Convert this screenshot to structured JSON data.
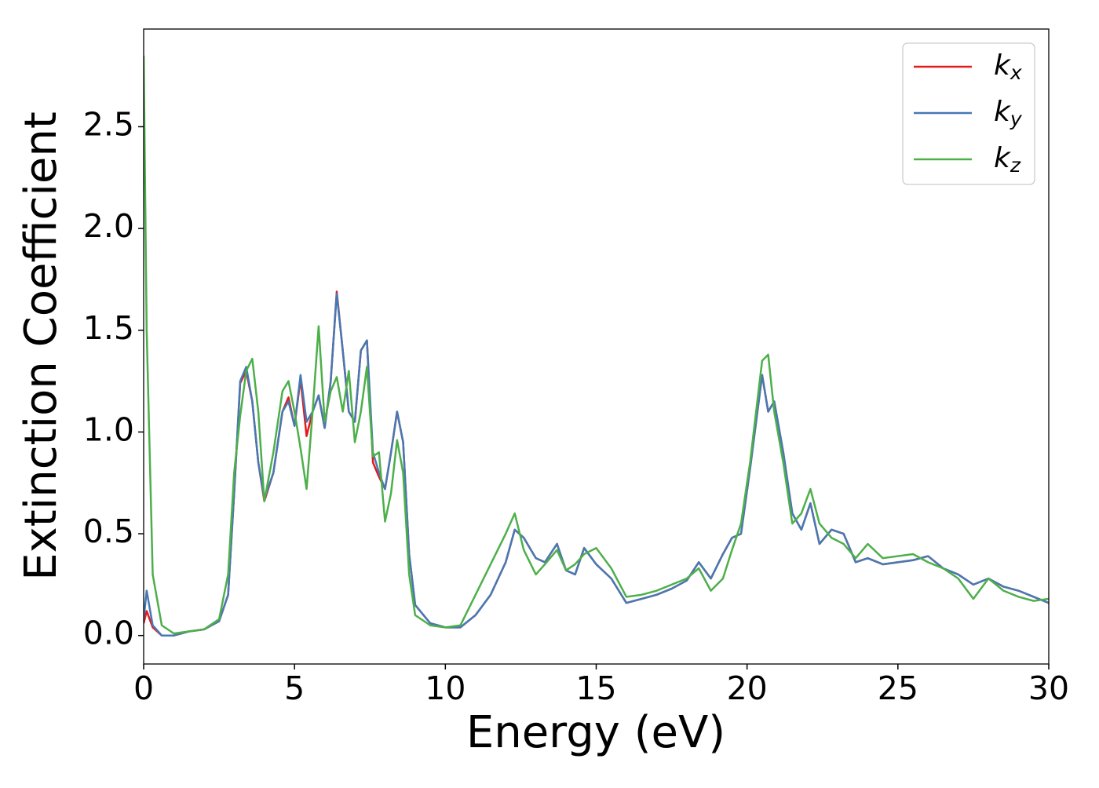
{
  "chart_data": {
    "type": "line",
    "xlabel": "Energy (eV)",
    "ylabel": "Extinction Coefficient",
    "x": [
      0,
      0.1,
      0.3,
      0.6,
      1,
      1.5,
      2,
      2.5,
      2.8,
      3,
      3.2,
      3.4,
      3.6,
      3.8,
      4,
      4.3,
      4.6,
      4.8,
      5,
      5.2,
      5.4,
      5.6,
      5.8,
      6,
      6.2,
      6.4,
      6.6,
      6.8,
      7,
      7.2,
      7.4,
      7.6,
      7.8,
      8,
      8.2,
      8.4,
      8.6,
      8.8,
      9,
      9.5,
      10,
      10.5,
      11,
      11.5,
      12,
      12.3,
      12.6,
      13,
      13.3,
      13.7,
      14,
      14.3,
      14.6,
      15,
      15.5,
      16,
      16.5,
      17,
      17.5,
      18,
      18.4,
      18.8,
      19.2,
      19.5,
      19.8,
      20.1,
      20.5,
      20.7,
      20.9,
      21.2,
      21.5,
      21.8,
      22.1,
      22.4,
      22.8,
      23.2,
      23.6,
      24,
      24.5,
      25,
      25.5,
      26,
      26.5,
      27,
      27.5,
      28,
      28.5,
      29,
      29.5,
      30
    ],
    "series": [
      {
        "name": "kx",
        "color": "#e41a1c",
        "values": [
          0.06,
          0.12,
          0.04,
          0.0,
          0.0,
          0.02,
          0.03,
          0.07,
          0.2,
          0.7,
          1.24,
          1.3,
          1.15,
          0.85,
          0.66,
          0.8,
          1.1,
          1.17,
          1.03,
          1.26,
          0.98,
          1.1,
          1.18,
          1.02,
          1.25,
          1.69,
          1.4,
          1.1,
          1.05,
          1.4,
          1.45,
          0.85,
          0.78,
          0.72,
          0.9,
          1.1,
          0.95,
          0.4,
          0.15,
          0.06,
          0.04,
          0.04,
          0.1,
          0.2,
          0.36,
          0.52,
          0.48,
          0.38,
          0.36,
          0.45,
          0.32,
          0.3,
          0.43,
          0.35,
          0.28,
          0.16,
          0.18,
          0.2,
          0.23,
          0.27,
          0.36,
          0.28,
          0.4,
          0.48,
          0.5,
          0.82,
          1.28,
          1.1,
          1.15,
          0.9,
          0.6,
          0.52,
          0.65,
          0.45,
          0.52,
          0.5,
          0.36,
          0.38,
          0.35,
          0.36,
          0.37,
          0.39,
          0.33,
          0.3,
          0.25,
          0.28,
          0.24,
          0.22,
          0.19,
          0.16
        ]
      },
      {
        "name": "ky",
        "color": "#4679b4",
        "values": [
          0.08,
          0.22,
          0.05,
          0.0,
          0.0,
          0.02,
          0.03,
          0.07,
          0.2,
          0.7,
          1.25,
          1.32,
          1.15,
          0.85,
          0.67,
          0.8,
          1.1,
          1.15,
          1.03,
          1.28,
          1.05,
          1.1,
          1.18,
          1.02,
          1.25,
          1.68,
          1.4,
          1.1,
          1.05,
          1.4,
          1.45,
          0.9,
          0.8,
          0.72,
          0.9,
          1.1,
          0.95,
          0.4,
          0.15,
          0.06,
          0.04,
          0.04,
          0.1,
          0.2,
          0.36,
          0.52,
          0.48,
          0.38,
          0.36,
          0.45,
          0.32,
          0.3,
          0.43,
          0.35,
          0.28,
          0.16,
          0.18,
          0.2,
          0.23,
          0.27,
          0.36,
          0.28,
          0.4,
          0.48,
          0.5,
          0.82,
          1.28,
          1.1,
          1.15,
          0.9,
          0.6,
          0.52,
          0.65,
          0.45,
          0.52,
          0.5,
          0.36,
          0.38,
          0.35,
          0.36,
          0.37,
          0.39,
          0.33,
          0.3,
          0.25,
          0.28,
          0.24,
          0.22,
          0.19,
          0.16
        ]
      },
      {
        "name": "kz",
        "color": "#4daf4a",
        "values": [
          2.85,
          1.5,
          0.3,
          0.05,
          0.01,
          0.02,
          0.03,
          0.08,
          0.3,
          0.8,
          1.08,
          1.3,
          1.36,
          1.1,
          0.66,
          0.9,
          1.2,
          1.25,
          1.1,
          0.92,
          0.72,
          1.1,
          1.52,
          1.05,
          1.2,
          1.27,
          1.1,
          1.3,
          0.95,
          1.1,
          1.32,
          0.88,
          0.9,
          0.56,
          0.7,
          0.96,
          0.8,
          0.3,
          0.1,
          0.05,
          0.04,
          0.05,
          0.2,
          0.35,
          0.5,
          0.6,
          0.42,
          0.3,
          0.35,
          0.42,
          0.32,
          0.35,
          0.4,
          0.43,
          0.33,
          0.19,
          0.2,
          0.22,
          0.25,
          0.28,
          0.33,
          0.22,
          0.28,
          0.42,
          0.55,
          0.85,
          1.35,
          1.38,
          1.1,
          0.85,
          0.55,
          0.6,
          0.72,
          0.55,
          0.48,
          0.45,
          0.38,
          0.45,
          0.38,
          0.39,
          0.4,
          0.36,
          0.33,
          0.28,
          0.18,
          0.28,
          0.22,
          0.19,
          0.17,
          0.18
        ]
      }
    ],
    "xlim": [
      0,
      30
    ],
    "xticks": [
      0,
      5,
      10,
      15,
      20,
      25,
      30
    ],
    "ylim": [
      -0.14,
      2.98
    ],
    "yticks": [
      {
        "value": 0,
        "label": "0.0"
      },
      0.5,
      {
        "value": 1,
        "label": "1.0"
      },
      1.5,
      {
        "value": 2,
        "label": "2.0"
      },
      2.5
    ],
    "legend": "upper right"
  }
}
